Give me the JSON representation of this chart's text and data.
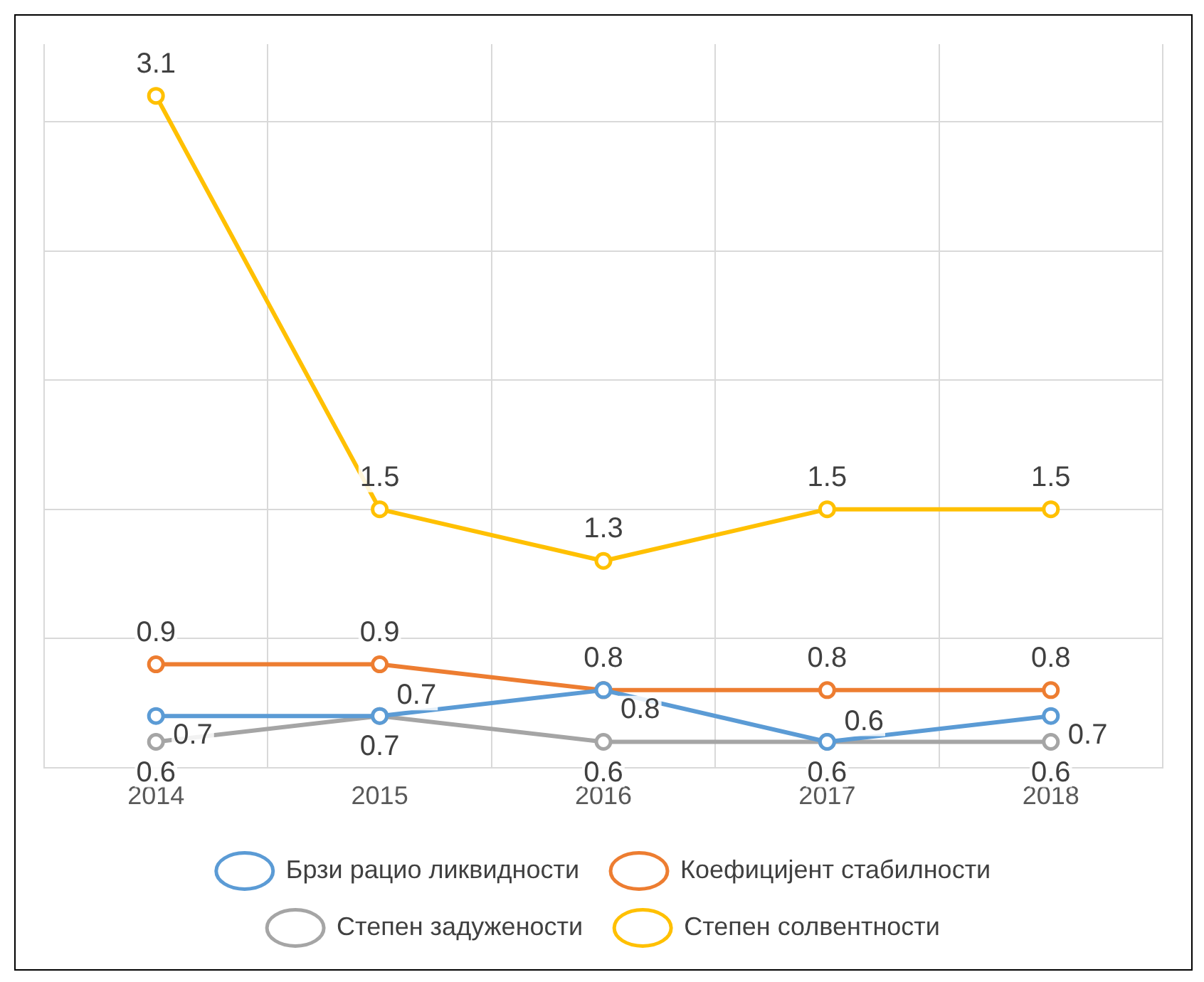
{
  "chart_data": {
    "type": "line",
    "categories": [
      "2014",
      "2015",
      "2016",
      "2017",
      "2018"
    ],
    "series": [
      {
        "name": "Брзи рацио ликвидности",
        "color": "#5b9bd5",
        "values": [
          0.7,
          0.7,
          0.8,
          0.6,
          0.7
        ]
      },
      {
        "name": "Коефицијент стабилности",
        "color": "#ed7d31",
        "values": [
          0.9,
          0.9,
          0.8,
          0.8,
          0.8
        ]
      },
      {
        "name": "Степен задужености",
        "color": "#a5a5a5",
        "values": [
          0.6,
          0.7,
          0.6,
          0.6,
          0.6
        ]
      },
      {
        "name": "Степен солвентности",
        "color": "#ffc000",
        "values": [
          3.1,
          1.5,
          1.3,
          1.5,
          1.5
        ]
      }
    ],
    "ylim": [
      0.5,
      3.3
    ],
    "yticks": [
      {
        "value": 0.5,
        "label": null
      },
      {
        "value": 1,
        "label": null
      },
      {
        "value": 1.5,
        "label": null
      },
      {
        "value": 2,
        "label": null
      },
      {
        "value": 2.5,
        "label": null
      },
      {
        "value": 3,
        "label": null
      }
    ],
    "tick_labels": "x",
    "grid": true,
    "legend": "bottom",
    "marker": "circle",
    "line_style": "solid",
    "data_labels": true
  }
}
